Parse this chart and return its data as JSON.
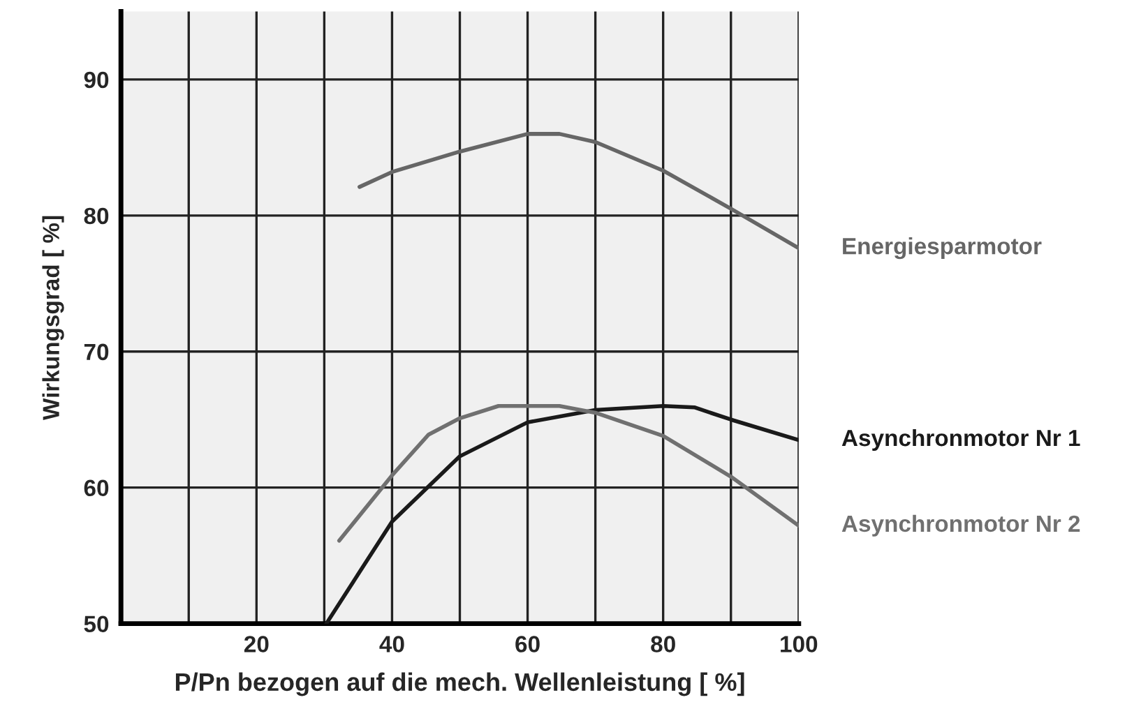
{
  "chart_data": {
    "type": "line",
    "xlabel": "P/Pn bezogen auf die mech. Wellenleistung [ %]",
    "ylabel": "Wirkungsgrad [ %]",
    "xlim": [
      0,
      100
    ],
    "ylim": [
      50,
      95
    ],
    "xticks": [
      {
        "value": 10,
        "label": null
      },
      20,
      {
        "value": 30,
        "label": null
      },
      40,
      {
        "value": 50,
        "label": null
      },
      60,
      {
        "value": 70,
        "label": null
      },
      80,
      {
        "value": 90,
        "label": null
      },
      100
    ],
    "yticks": [
      50,
      60,
      70,
      80,
      90
    ],
    "grid": true,
    "legend": false,
    "marker": "none",
    "line_style": "solid",
    "series": [
      {
        "name": "Energiesparmotor",
        "color": "#666666",
        "x": [
          35.2,
          40,
          50,
          60,
          64.7,
          70,
          80,
          90,
          100
        ],
        "values": [
          82.1,
          83.2,
          84.7,
          86.0,
          86.0,
          85.4,
          83.3,
          80.5,
          77.6
        ]
      },
      {
        "name": "Asynchronmotor Nr 1",
        "color": "#1a1a1a",
        "x": [
          30.3,
          40,
          50,
          60,
          70,
          80,
          84.6,
          90,
          100
        ],
        "values": [
          50.0,
          57.5,
          62.3,
          64.8,
          65.7,
          66.0,
          65.9,
          65.0,
          63.5
        ]
      },
      {
        "name": "Asynchronmotor Nr 2",
        "color": "#707070",
        "x": [
          32.2,
          40,
          45.4,
          50,
          55.7,
          64.7,
          70,
          80,
          90,
          100
        ],
        "values": [
          56.1,
          60.9,
          63.9,
          65.1,
          66.0,
          66.0,
          65.5,
          63.8,
          60.8,
          57.2
        ]
      }
    ]
  }
}
